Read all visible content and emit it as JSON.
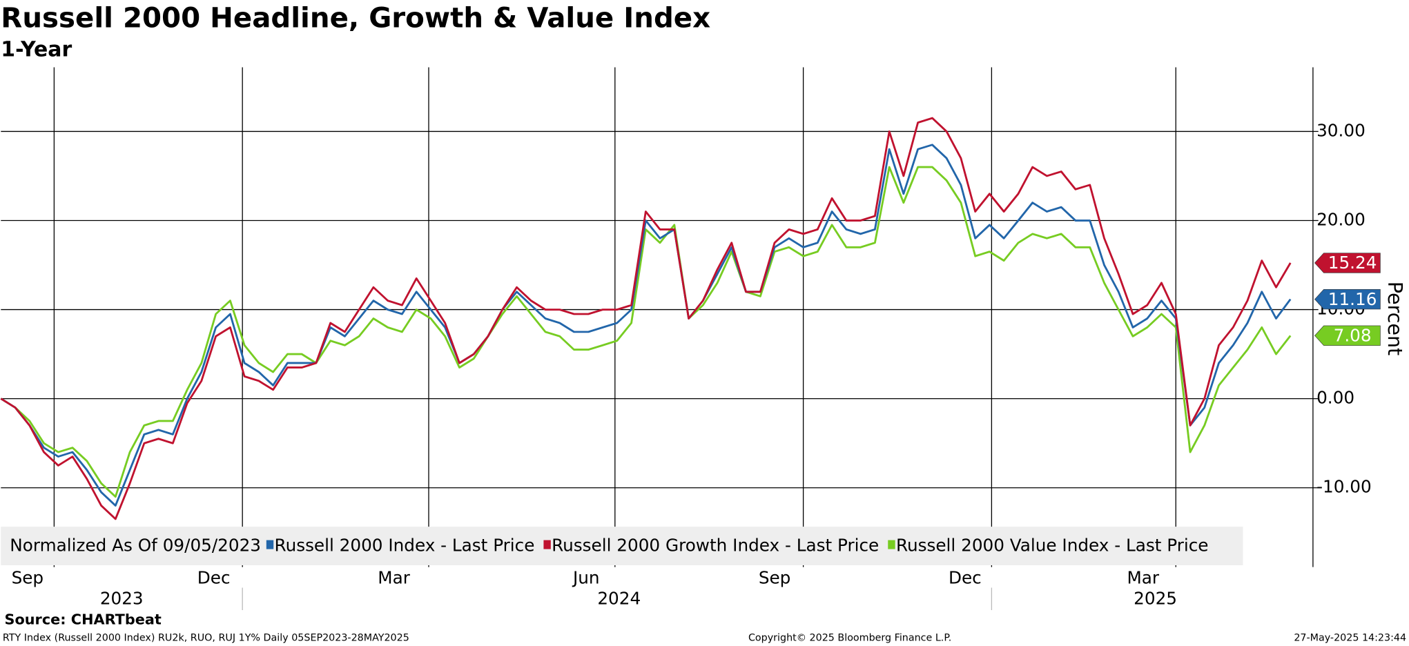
{
  "chart_data": {
    "type": "line",
    "title": "Russell 2000 Headline, Growth & Value Index",
    "subtitle": "1-Year",
    "y_axis_label": "Percent",
    "legend_prefix": "Normalized As Of 09/05/2023",
    "source": "Source: CHARTbeat",
    "footer_left": "RTY Index (Russell 2000 Index) RU2k, RUO, RUJ 1Y%  Daily 05SEP2023-28MAY2025",
    "footer_center": "Copyright© 2025 Bloomberg Finance L.P.",
    "footer_right": "27-May-2025 14:23:44",
    "x": [
      "2023-09-05",
      "2023-09-12",
      "2023-09-19",
      "2023-09-26",
      "2023-10-03",
      "2023-10-10",
      "2023-10-17",
      "2023-10-24",
      "2023-10-31",
      "2023-11-07",
      "2023-11-14",
      "2023-11-21",
      "2023-11-28",
      "2023-12-05",
      "2023-12-12",
      "2023-12-19",
      "2023-12-26",
      "2024-01-02",
      "2024-01-09",
      "2024-01-16",
      "2024-01-23",
      "2024-01-30",
      "2024-02-06",
      "2024-02-13",
      "2024-02-20",
      "2024-02-27",
      "2024-03-05",
      "2024-03-12",
      "2024-03-19",
      "2024-03-26",
      "2024-04-02",
      "2024-04-09",
      "2024-04-16",
      "2024-04-23",
      "2024-04-30",
      "2024-05-07",
      "2024-05-14",
      "2024-05-21",
      "2024-05-28",
      "2024-06-04",
      "2024-06-11",
      "2024-06-18",
      "2024-06-25",
      "2024-07-02",
      "2024-07-09",
      "2024-07-16",
      "2024-07-23",
      "2024-07-30",
      "2024-08-06",
      "2024-08-13",
      "2024-08-20",
      "2024-08-27",
      "2024-09-03",
      "2024-09-10",
      "2024-09-17",
      "2024-09-24",
      "2024-10-01",
      "2024-10-08",
      "2024-10-15",
      "2024-10-22",
      "2024-10-29",
      "2024-11-05",
      "2024-11-12",
      "2024-11-19",
      "2024-11-26",
      "2024-12-03",
      "2024-12-10",
      "2024-12-17",
      "2024-12-24",
      "2024-12-31",
      "2025-01-07",
      "2025-01-14",
      "2025-01-21",
      "2025-01-28",
      "2025-02-04",
      "2025-02-11",
      "2025-02-18",
      "2025-02-25",
      "2025-03-04",
      "2025-03-11",
      "2025-03-18",
      "2025-03-25",
      "2025-04-01",
      "2025-04-08",
      "2025-04-15",
      "2025-04-22",
      "2025-04-29",
      "2025-05-06",
      "2025-05-13",
      "2025-05-20",
      "2025-05-27"
    ],
    "series": [
      {
        "name": "Russell 2000 Index - Last Price",
        "color": "#2266aa",
        "values": [
          0,
          -1,
          -3,
          -5.5,
          -6.5,
          -6,
          -8,
          -10.5,
          -12,
          -8,
          -4,
          -3.5,
          -4,
          0,
          3,
          8,
          9.5,
          4,
          3,
          1.5,
          4,
          4,
          4,
          8,
          7,
          9,
          11,
          10,
          9.5,
          12,
          10,
          8,
          4,
          5,
          7,
          10,
          12,
          10.5,
          9,
          8.5,
          7.5,
          7.5,
          8,
          8.5,
          10,
          20,
          18,
          19,
          9,
          11,
          14,
          17,
          12,
          12,
          17,
          18,
          17,
          17.5,
          21,
          19,
          18.5,
          19,
          28,
          23,
          28,
          28.5,
          27,
          24,
          18,
          19.5,
          18,
          20,
          22,
          21,
          21.5,
          20,
          20,
          15,
          12,
          8,
          9,
          11,
          9,
          -3,
          -1,
          4,
          6,
          8.5,
          12,
          9,
          11.16
        ]
      },
      {
        "name": "Russell 2000 Growth Index - Last Price",
        "color": "#c0122f",
        "values": [
          0,
          -1,
          -3,
          -6,
          -7.5,
          -6.5,
          -9,
          -12,
          -13.5,
          -9.5,
          -5,
          -4.5,
          -5,
          -0.5,
          2,
          7,
          8,
          2.5,
          2,
          1,
          3.5,
          3.5,
          4,
          8.5,
          7.5,
          10,
          12.5,
          11,
          10.5,
          13.5,
          11,
          8.5,
          4,
          5,
          7,
          10,
          12.5,
          11,
          10,
          10,
          9.5,
          9.5,
          10,
          10,
          10.5,
          21,
          19,
          19,
          9,
          11,
          14.5,
          17.5,
          12,
          12,
          17.5,
          19,
          18.5,
          19,
          22.5,
          20,
          20,
          20.5,
          30,
          25,
          31,
          31.5,
          30,
          27,
          21,
          23,
          21,
          23,
          26,
          25,
          25.5,
          23.5,
          24,
          18,
          14,
          9.5,
          10.5,
          13,
          9.5,
          -3,
          0,
          6,
          8,
          11,
          15.5,
          12.5,
          15.24
        ]
      },
      {
        "name": "Russell 2000 Value Index - Last Price",
        "color": "#77cc22",
        "values": [
          0,
          -1,
          -2.5,
          -5,
          -6,
          -5.5,
          -7,
          -9.5,
          -11,
          -6,
          -3,
          -2.5,
          -2.5,
          1,
          4,
          9.5,
          11,
          6,
          4,
          3,
          5,
          5,
          4,
          6.5,
          6,
          7,
          9,
          8,
          7.5,
          10,
          9,
          7,
          3.5,
          4.5,
          7,
          9.5,
          11.5,
          9.5,
          7.5,
          7,
          5.5,
          5.5,
          6,
          6.5,
          8.5,
          19,
          17.5,
          19.5,
          9,
          10.5,
          13,
          16.5,
          12,
          11.5,
          16.5,
          17,
          16,
          16.5,
          19.5,
          17,
          17,
          17.5,
          26,
          22,
          26,
          26,
          24.5,
          22,
          16,
          16.5,
          15.5,
          17.5,
          18.5,
          18,
          18.5,
          17,
          17,
          13,
          10,
          7,
          8,
          9.5,
          8,
          -6,
          -3,
          1.5,
          3.5,
          5.5,
          8,
          5,
          7.08
        ]
      }
    ],
    "xlim": [
      "2023-09-05",
      "2025-06-07"
    ],
    "xticks": [
      {
        "value": "2023-09-18",
        "label": "Sep"
      },
      {
        "value": "2023-12-18",
        "label": "Dec"
      },
      {
        "value": "2024-03-15",
        "label": "Mar"
      },
      {
        "value": "2024-06-17",
        "label": "Jun"
      },
      {
        "value": "2024-09-17",
        "label": "Sep"
      },
      {
        "value": "2024-12-19",
        "label": "Dec"
      },
      {
        "value": "2025-03-16",
        "label": "Mar"
      }
    ],
    "x_gridlines": [
      "2023-10-01",
      "2024-01-01",
      "2024-04-01",
      "2024-07-01",
      "2024-10-01",
      "2025-01-01",
      "2025-04-01"
    ],
    "year_labels": [
      {
        "value": "2023-11-03",
        "label": "2023"
      },
      {
        "value": "2024-07-03",
        "label": "2024"
      },
      {
        "value": "2025-03-22",
        "label": "2025"
      }
    ],
    "ylim": [
      -18.9,
      37.2
    ],
    "yticks": [
      {
        "value": -10,
        "label": "-10.00"
      },
      {
        "value": 0,
        "label": "0.00"
      },
      {
        "value": 10,
        "label": "10.00"
      },
      {
        "value": 20,
        "label": "20.00"
      },
      {
        "value": 30,
        "label": "30.00"
      }
    ],
    "grid": true
  }
}
